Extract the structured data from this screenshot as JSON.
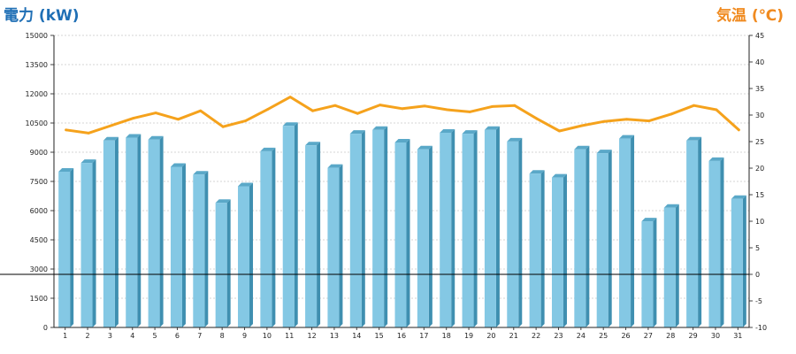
{
  "chart_data": {
    "type": "bar",
    "left_axis_title": "電力 (kW)",
    "right_axis_title": "気温 (℃)",
    "categories": [
      "1",
      "2",
      "3",
      "4",
      "5",
      "6",
      "7",
      "8",
      "9",
      "10",
      "11",
      "12",
      "13",
      "14",
      "15",
      "16",
      "17",
      "18",
      "19",
      "20",
      "21",
      "22",
      "23",
      "24",
      "25",
      "26",
      "27",
      "28",
      "29",
      "30",
      "31"
    ],
    "left_ticks": [
      "0",
      "1500",
      "3000",
      "4500",
      "6000",
      "7500",
      "9000",
      "10500",
      "12000",
      "13500",
      "15000"
    ],
    "right_ticks": [
      "-10",
      "-5",
      "0",
      "5",
      "10",
      "15",
      "20",
      "25",
      "30",
      "35",
      "40",
      "45"
    ],
    "ylim_left": [
      0,
      15000
    ],
    "ylim_right": [
      -10,
      45
    ],
    "reference_line_value_right": 0,
    "series": [
      {
        "values": [
          8000,
          8450,
          9600,
          9750,
          9650,
          8250,
          7850,
          6400,
          7250,
          9050,
          10350,
          9350,
          8200,
          9950,
          10150,
          9500,
          9150,
          10000,
          9950,
          10150,
          9550,
          7900,
          7700,
          9150,
          8950,
          9700,
          5450,
          6150,
          9600,
          8550,
          6600
        ],
        "axis": "left",
        "render": "bar",
        "color": "#84c8e4"
      },
      {
        "values": [
          27.2,
          26.6,
          28.0,
          29.4,
          30.4,
          29.2,
          30.8,
          27.8,
          28.9,
          31.1,
          33.4,
          30.8,
          31.8,
          30.3,
          31.9,
          31.2,
          31.7,
          31.0,
          30.6,
          31.6,
          31.8,
          29.3,
          27.0,
          28.0,
          28.8,
          29.2,
          28.9,
          30.2,
          31.8,
          31.0,
          27.2
        ],
        "axis": "right",
        "render": "line",
        "color": "#f5a21c"
      }
    ],
    "grid": true
  }
}
